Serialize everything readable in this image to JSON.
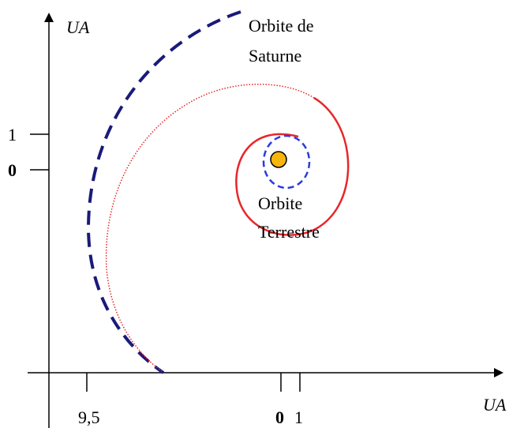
{
  "axes": {
    "y_label": "UA",
    "x_label": "UA",
    "y_ticks": [
      "1",
      "0"
    ],
    "x_ticks": [
      "9,5",
      "0",
      "1"
    ]
  },
  "labels": {
    "saturn_orbit": [
      "Orbite de",
      "Saturne"
    ],
    "earth_orbit": [
      "Orbite",
      "Terrestre"
    ]
  }
}
